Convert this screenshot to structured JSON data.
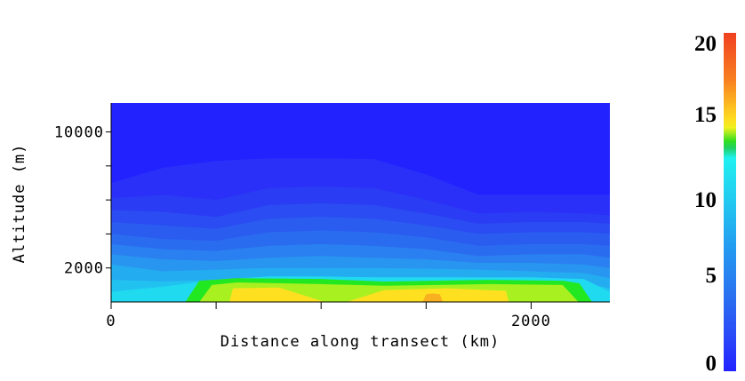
{
  "chart_data": {
    "type": "heatmap",
    "subtype": "filled-contour",
    "xlabel": "Distance along transect (km)",
    "ylabel": "Altitude (m)",
    "xlim": [
      0,
      2375
    ],
    "ylim": [
      0,
      11700
    ],
    "x_ticks": [
      0,
      500,
      1000,
      1500,
      2000
    ],
    "x_tick_labels": [
      "0",
      "",
      "",
      "",
      "2000"
    ],
    "y_ticks": [
      2000,
      4000,
      6000,
      8000,
      10000
    ],
    "y_tick_labels": [
      "2000",
      "",
      "",
      "",
      "10000"
    ],
    "colorbar": {
      "min": 0,
      "max": 20,
      "tick_labels": [
        "20",
        "15",
        "10",
        "5",
        "0"
      ]
    },
    "background_color": "#2222ff",
    "bands_x_km": [
      0,
      250,
      500,
      750,
      1000,
      1250,
      1500,
      1750,
      2000,
      2250,
      2375
    ],
    "bands": [
      {
        "color": "#2a30f8",
        "top_m": [
          7000,
          7900,
          8300,
          8450,
          8450,
          8400,
          7500,
          6300,
          6300,
          6300,
          6300
        ]
      },
      {
        "color": "#2a3cf4",
        "top_m": [
          6100,
          6300,
          6000,
          6700,
          6800,
          6700,
          6000,
          5200,
          5300,
          5200,
          5100
        ]
      },
      {
        "color": "#2a4cf2",
        "top_m": [
          5400,
          5300,
          5000,
          5700,
          5800,
          5700,
          5200,
          4600,
          4700,
          4700,
          4600
        ]
      },
      {
        "color": "#2a5cf0",
        "top_m": [
          4700,
          4500,
          4300,
          4900,
          5000,
          4900,
          4500,
          4000,
          4100,
          4100,
          4000
        ]
      },
      {
        "color": "#2a6cf0",
        "top_m": [
          4000,
          3700,
          3600,
          4100,
          4200,
          4100,
          3800,
          3300,
          3400,
          3400,
          3300
        ]
      },
      {
        "color": "#2a80f0",
        "top_m": [
          3400,
          3100,
          3000,
          3300,
          3400,
          3300,
          3100,
          2700,
          2800,
          2800,
          2600
        ]
      },
      {
        "color": "#2896f0",
        "top_m": [
          2800,
          2500,
          2400,
          2600,
          2700,
          2600,
          2500,
          2300,
          2300,
          2200,
          2000
        ]
      },
      {
        "color": "#24acf0",
        "top_m": [
          2200,
          1800,
          1900,
          2000,
          2000,
          2000,
          1950,
          1900,
          1800,
          1700,
          1400
        ]
      },
      {
        "color": "#22c2f0",
        "top_m": [
          1300,
          1200,
          1300,
          1400,
          1400,
          1400,
          1400,
          1400,
          1300,
          1100,
          800
        ]
      },
      {
        "color": "#20daf0",
        "top_m": [
          600,
          900,
          1300,
          1500,
          1500,
          1450,
          1450,
          1450,
          1450,
          1350,
          600
        ]
      }
    ],
    "blobs": [
      {
        "color": "#22e822",
        "x_km": [
          353,
          420,
          600,
          1000,
          1300,
          1800,
          2150,
          2230,
          2290
        ],
        "top_m": [
          0,
          1250,
          1400,
          1350,
          1200,
          1300,
          1250,
          1100,
          0
        ]
      },
      {
        "color": "#a8f020",
        "x_km": [
          420,
          480,
          600,
          1000,
          1300,
          1800,
          2150,
          2225
        ],
        "top_m": [
          0,
          1000,
          1150,
          1050,
          950,
          1050,
          1000,
          0
        ]
      },
      {
        "color": "#ffe020",
        "x_km": [
          563,
          580,
          800,
          1017
        ],
        "top_m": [
          0,
          800,
          850,
          0
        ]
      },
      {
        "color": "#ffe020",
        "x_km": [
          1123,
          1300,
          1600,
          1880,
          1894
        ],
        "top_m": [
          0,
          700,
          800,
          650,
          0
        ]
      },
      {
        "color": "#f8b020",
        "x_km": [
          1483,
          1500,
          1530,
          1565,
          1580
        ],
        "top_m": [
          0,
          450,
          500,
          450,
          0
        ]
      }
    ]
  }
}
